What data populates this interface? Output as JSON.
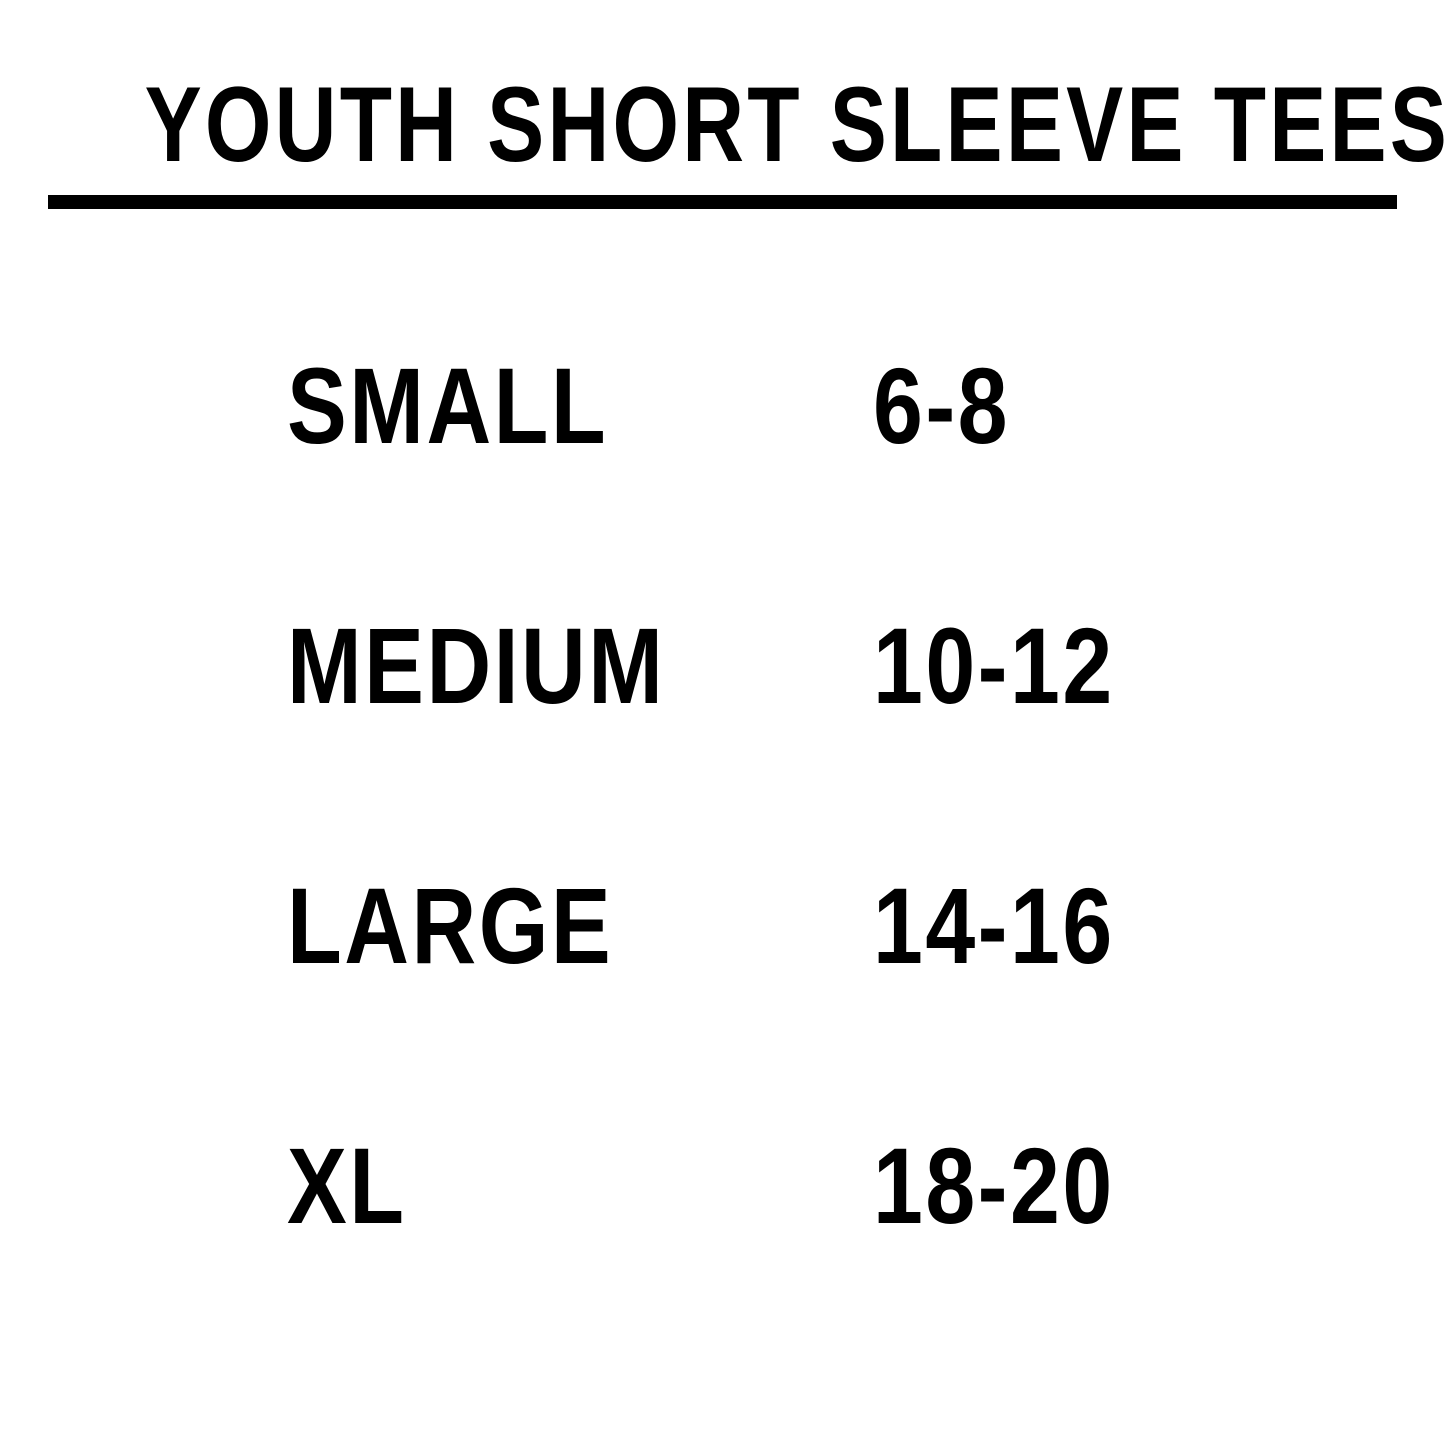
{
  "title": "YOUTH SHORT SLEEVE TEES",
  "rows": [
    {
      "size": "SMALL",
      "range": "6-8"
    },
    {
      "size": "MEDIUM",
      "range": "10-12"
    },
    {
      "size": "LARGE",
      "range": "14-16"
    },
    {
      "size": "XL",
      "range": "18-20"
    }
  ]
}
